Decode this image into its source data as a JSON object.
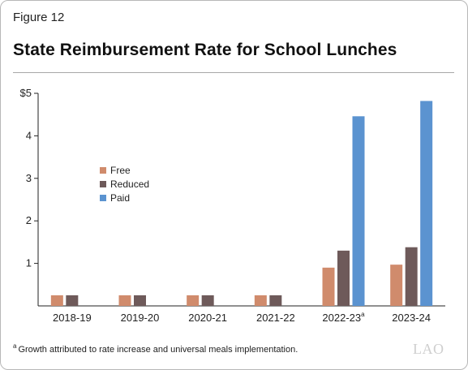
{
  "header": {
    "figure_label": "Figure 12",
    "title": "State Reimbursement Rate for School Lunches"
  },
  "footnote": {
    "marker": "a",
    "text": "Growth attributed to rate increase and universal meals implementation."
  },
  "logo": {
    "text": "LAO",
    "icon": "lao-logo-icon"
  },
  "chart_data": {
    "type": "bar",
    "title": "State Reimbursement Rate for School Lunches",
    "xlabel": "",
    "ylabel": "",
    "categories": [
      "2018-19",
      "2019-20",
      "2020-21",
      "2021-22",
      "2022-23",
      "2023-24"
    ],
    "category_superscripts": [
      "",
      "",
      "",
      "",
      "a",
      ""
    ],
    "series": [
      {
        "name": "Free",
        "color": "#d08b6c",
        "values": [
          0.25,
          0.25,
          0.25,
          0.25,
          0.9,
          0.97
        ]
      },
      {
        "name": "Reduced",
        "color": "#6e5a5a",
        "values": [
          0.25,
          0.25,
          0.25,
          0.25,
          1.3,
          1.38
        ]
      },
      {
        "name": "Paid",
        "color": "#5b93d0",
        "values": [
          null,
          null,
          null,
          null,
          4.46,
          4.82
        ]
      }
    ],
    "ylim": [
      0,
      5
    ],
    "yticks": [
      1,
      2,
      3,
      4,
      5
    ],
    "ytick_labels": [
      "1",
      "2",
      "3",
      "4",
      "$5"
    ],
    "grid": false,
    "legend_position": "left-center"
  }
}
